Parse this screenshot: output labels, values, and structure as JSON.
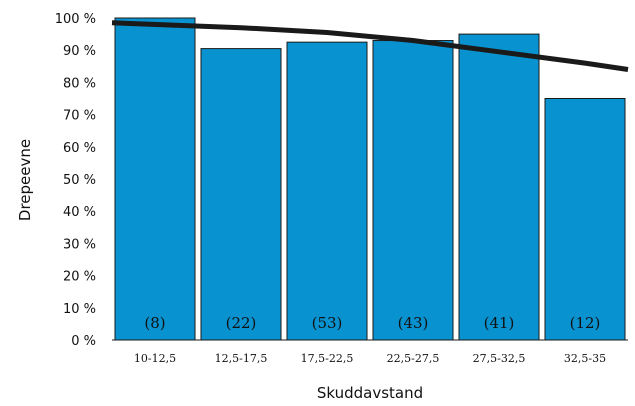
{
  "chart_data": {
    "type": "bar",
    "categories": [
      "10-12,5",
      "12,5-17,5",
      "17,5-22,5",
      "22,5-27,5",
      "27,5-32,5",
      "32,5-35"
    ],
    "values": [
      100,
      90.5,
      92.5,
      93,
      95,
      75
    ],
    "counts": [
      "(8)",
      "(22)",
      "(53)",
      "(43)",
      "(41)",
      "(12)"
    ],
    "trend_line": {
      "x": [
        0,
        1,
        2,
        3,
        4,
        5,
        5.5
      ],
      "y": [
        98.5,
        97,
        95.5,
        93,
        89.5,
        86,
        84
      ]
    },
    "ylim": [
      0,
      100
    ],
    "yticks": [
      0,
      10,
      20,
      30,
      40,
      50,
      60,
      70,
      80,
      90,
      100
    ],
    "ytick_labels": [
      "0 %",
      "10 %",
      "20 %",
      "30 %",
      "40 %",
      "50 %",
      "60 %",
      "70 %",
      "80 %",
      "90 %",
      "100 %"
    ],
    "xlabel": "Skuddavstand",
    "ylabel": "Drepeevne",
    "title": "",
    "grid": false,
    "colors": {
      "bar": "#0992d0",
      "bar_edge": "#1a1a1a",
      "line": "#1a1a1a"
    }
  }
}
